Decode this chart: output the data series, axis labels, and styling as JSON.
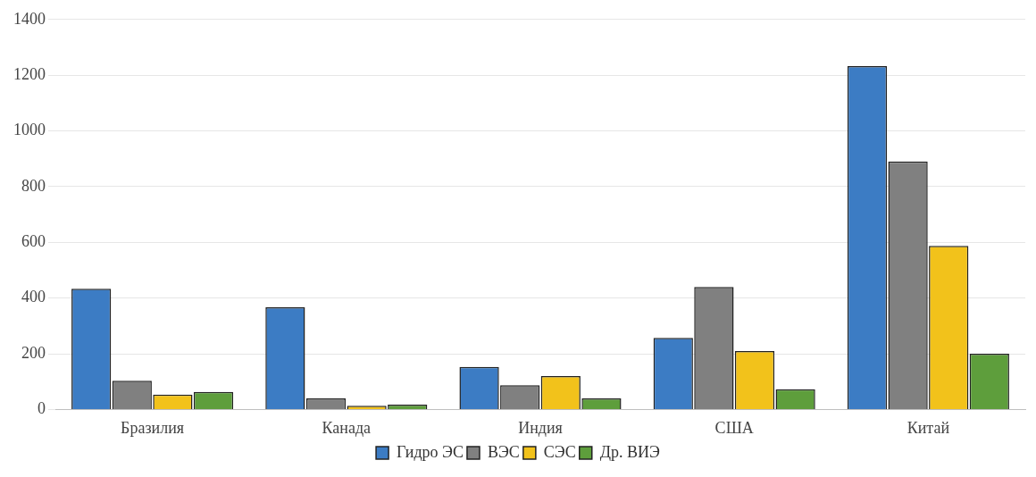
{
  "chart_data": {
    "type": "bar",
    "categories": [
      "Бразилия",
      "Канада",
      "Индия",
      "США",
      "Китай"
    ],
    "series": [
      {
        "name": "Гидро ЭС",
        "color": "#3c7cc4",
        "values": [
          433,
          367,
          153,
          257,
          1233
        ]
      },
      {
        "name": "ВЭС",
        "color": "#808080",
        "values": [
          103,
          40,
          87,
          440,
          890
        ]
      },
      {
        "name": "СЭС",
        "color": "#f2c21b",
        "values": [
          53,
          13,
          120,
          210,
          587
        ]
      },
      {
        "name": "Др. ВИЭ",
        "color": "#5e9e3c",
        "values": [
          63,
          17,
          40,
          73,
          200
        ]
      }
    ],
    "ylim": [
      0,
      1400
    ],
    "yticks": [
      0,
      200,
      400,
      600,
      800,
      1000,
      1200,
      1400
    ],
    "grid": "y",
    "legend": "bottom"
  }
}
